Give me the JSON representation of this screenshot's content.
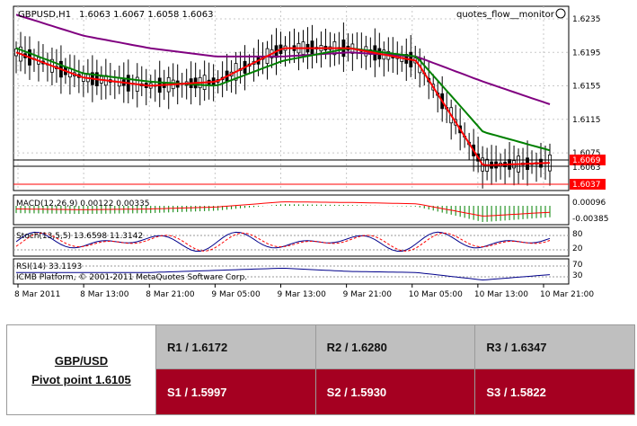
{
  "chart": {
    "symbol_label": "GBPUSD,H1",
    "ohlc_values": "1.6063 1.6067 1.6058 1.6063",
    "watermark": "quotes_flow__monitor",
    "price_axis_ticks": [
      "1.6235",
      "1.6195",
      "1.6155",
      "1.6115",
      "1.6075"
    ],
    "price_markers": {
      "current": "1.6069",
      "hidden": "1.6063",
      "low": "1.6037"
    },
    "macd": {
      "label": "MACD(12,26,9) 0.00122 0.00335",
      "ticks": [
        "0.00096",
        "-0.00385"
      ]
    },
    "stoch": {
      "label": "Stoch(13,5,5) 13.6598 11.3142",
      "ticks": [
        "80",
        "20"
      ]
    },
    "rsi": {
      "label": "RSI(14) 33.1193",
      "ticks": [
        "70",
        "30"
      ],
      "copyright": "ICMB Platform, © 2001-2011 MetaQuotes Software Corp."
    },
    "time_labels": [
      "8 Mar 2011",
      "8 Mar 13:00",
      "8 Mar 21:00",
      "9 Mar 05:00",
      "9 Mar 13:00",
      "9 Mar 21:00",
      "10 Mar 05:00",
      "10 Mar 13:00",
      "10 Mar 21:00"
    ],
    "colors": {
      "candle_body": "#000000",
      "ma_fast": "#ff0000",
      "ma_mid": "#008000",
      "ma_slow": "#800080",
      "marker_red": "#ff0000",
      "rsi_line": "#00008b"
    }
  },
  "chart_data": {
    "type": "line",
    "title": "GBPUSD,H1",
    "x": [
      "8 Mar 2011",
      "8 Mar 13:00",
      "8 Mar 21:00",
      "9 Mar 05:00",
      "9 Mar 13:00",
      "9 Mar 21:00",
      "10 Mar 05:00",
      "10 Mar 13:00",
      "10 Mar 21:00"
    ],
    "ylim": [
      1.603,
      1.625
    ],
    "series": [
      {
        "values": [
          1.6195,
          1.6165,
          1.6155,
          1.616,
          1.62,
          1.62,
          1.6185,
          1.606,
          1.6063
        ]
      },
      {
        "values": [
          1.62,
          1.617,
          1.616,
          1.6155,
          1.6185,
          1.62,
          1.619,
          1.61,
          1.6078
        ]
      },
      {
        "values": [
          1.624,
          1.6215,
          1.62,
          1.619,
          1.619,
          1.6195,
          1.619,
          1.616,
          1.6133
        ]
      }
    ]
  },
  "pivot_table": {
    "pair": "GBP/USD",
    "pivot": "Pivot point 1.6105",
    "r1": "R1 / 1.6172",
    "r2": "R2 / 1.6280",
    "r3": "R3 / 1.6347",
    "s1": "S1 / 1.5997",
    "s2": "S2 / 1.5930",
    "s3": "S3 / 1.5822"
  }
}
